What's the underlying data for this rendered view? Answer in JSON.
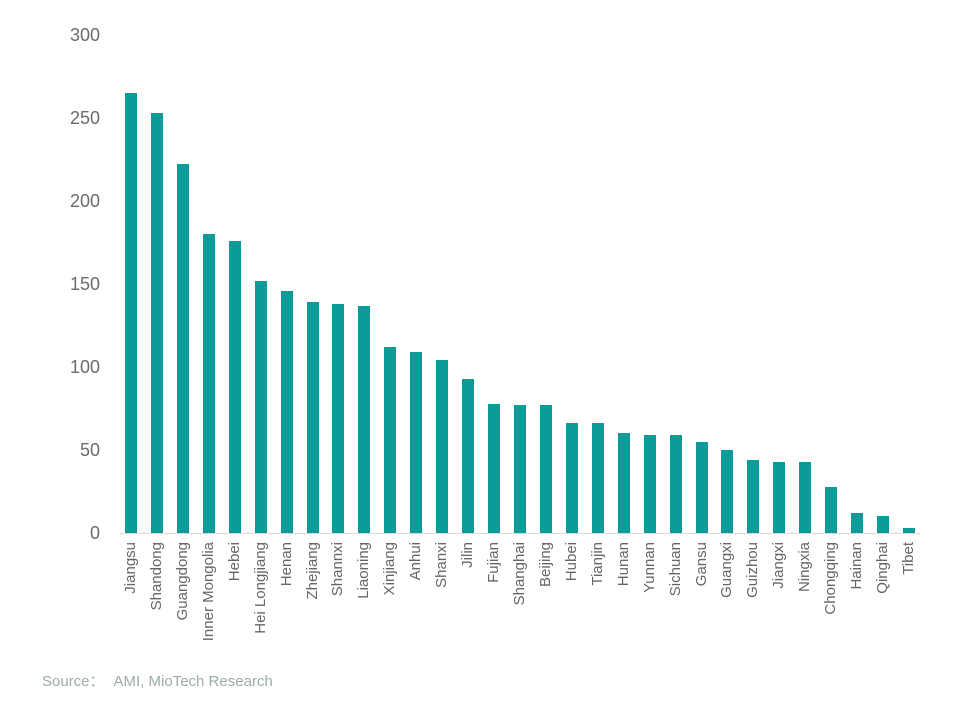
{
  "chart_data": {
    "type": "bar",
    "categories": [
      "Jiangsu",
      "Shandong",
      "Guangdong",
      "Inner Mongolia",
      "Hebei",
      "Hei Longjiang",
      "Henan",
      "Zhejiang",
      "Shannxi",
      "Liaoning",
      "Xinjiang",
      "Anhui",
      "Shanxi",
      "Jilin",
      "Fujian",
      "Shanghai",
      "Beijing",
      "Hubei",
      "Tianjin",
      "Hunan",
      "Yunnan",
      "Sichuan",
      "Gansu",
      "Guangxi",
      "Guizhou",
      "Jiangxi",
      "Ningxia",
      "Chongqing",
      "Hainan",
      "Qinghai",
      "Tibet"
    ],
    "values": [
      265,
      253,
      222,
      180,
      176,
      152,
      146,
      139,
      138,
      137,
      112,
      109,
      104,
      93,
      78,
      77,
      77,
      66,
      66,
      60,
      59,
      59,
      55,
      50,
      44,
      43,
      43,
      28,
      12,
      10,
      3
    ],
    "yticks": [
      0,
      50,
      100,
      150,
      200,
      250,
      300
    ],
    "ylim": [
      0,
      300
    ],
    "title": "",
    "xlabel": "",
    "ylabel": "",
    "grid": false,
    "legend": false,
    "bar_color": "#0d9b9a"
  },
  "source": {
    "label": "Source：",
    "text": "AMI, MioTech Research"
  },
  "colors": {
    "bar": "#0d9b9a",
    "axis_line": "#d9d9d9",
    "y_tick_label": "#6b6b6b",
    "x_tick_label": "#666666",
    "source_text": "#9cabab"
  }
}
